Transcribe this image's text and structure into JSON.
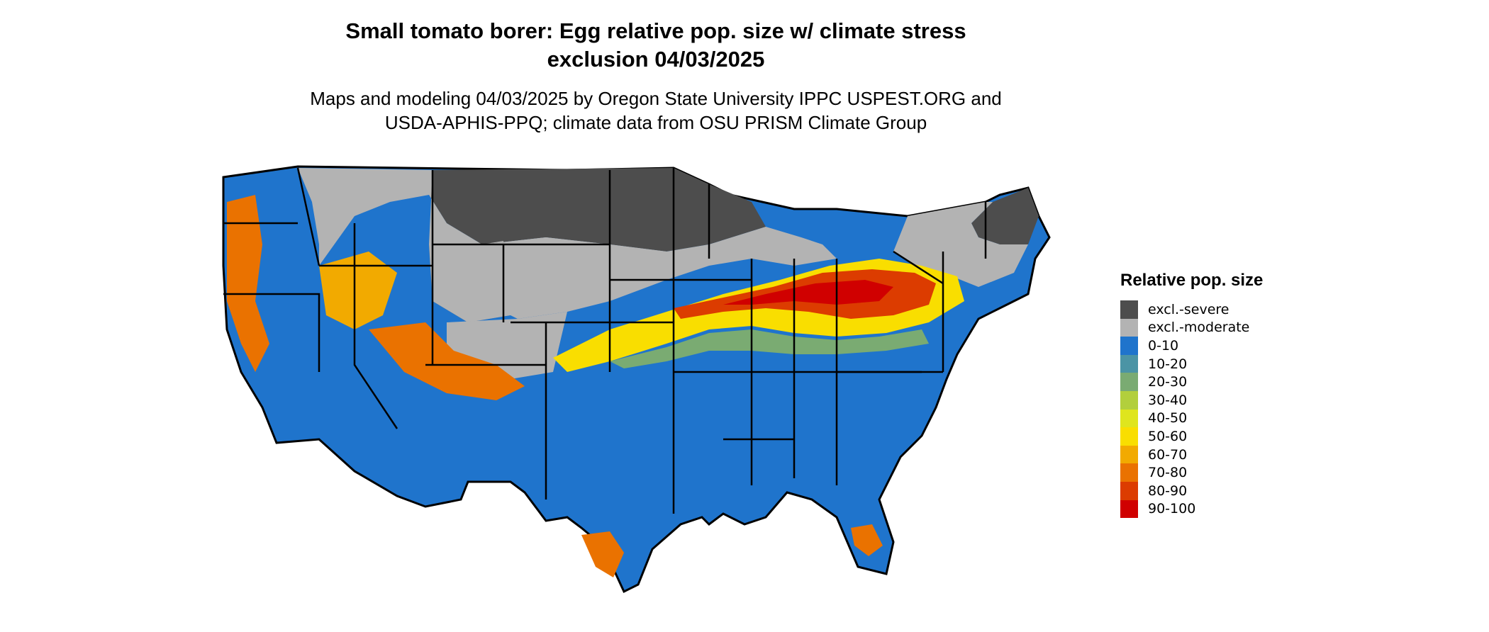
{
  "title": {
    "line1": "Small tomato borer: Egg relative pop. size w/ climate stress",
    "line2": "exclusion 04/03/2025"
  },
  "subtitle": {
    "line1": "Maps and modeling 04/03/2025 by Oregon State University IPPC USPEST.ORG and",
    "line2": "USDA-APHIS-PPQ; climate data from OSU PRISM Climate Group"
  },
  "legend": {
    "title": "Relative pop. size",
    "items": [
      {
        "label": "excl.-severe",
        "color": "#4d4d4d"
      },
      {
        "label": "excl.-moderate",
        "color": "#b3b3b3"
      },
      {
        "label": "0-10",
        "color": "#1f74cc"
      },
      {
        "label": "10-20",
        "color": "#4b94a5"
      },
      {
        "label": "20-30",
        "color": "#7aab72"
      },
      {
        "label": "30-40",
        "color": "#b2cf3c"
      },
      {
        "label": "40-50",
        "color": "#dfe51e"
      },
      {
        "label": "50-60",
        "color": "#f9de00"
      },
      {
        "label": "60-70",
        "color": "#f2aa00"
      },
      {
        "label": "70-80",
        "color": "#ea7200"
      },
      {
        "label": "80-90",
        "color": "#dc3c00"
      },
      {
        "label": "90-100",
        "color": "#d00000"
      }
    ]
  }
}
